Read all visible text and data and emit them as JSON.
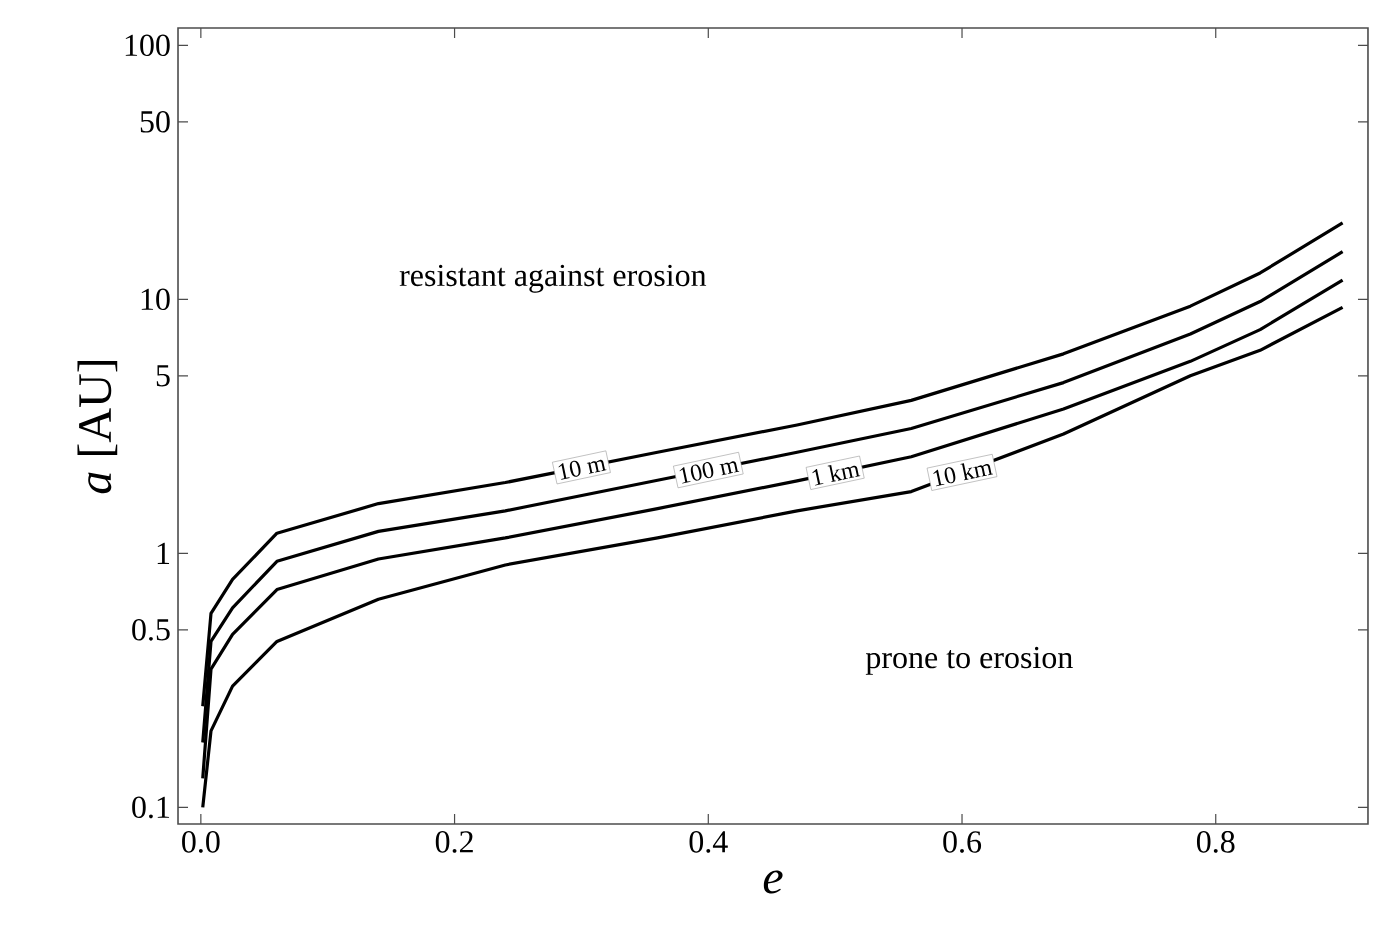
{
  "chart_data": {
    "type": "line",
    "xlabel": "e",
    "ylabel": "*a* [AU]",
    "log": "y",
    "xlim": [
      -0.018,
      0.92
    ],
    "ylim": [
      0.086,
      117
    ],
    "xticks": [
      {
        "value": 0,
        "label": "0.0"
      },
      0.2,
      0.4,
      0.6,
      0.8
    ],
    "yticks": [
      0.1,
      0.5,
      1,
      5,
      10,
      50,
      100
    ],
    "x": [
      0.0015,
      0.008,
      0.025,
      0.06,
      0.14,
      0.24,
      0.36,
      0.47,
      0.56,
      0.68,
      0.78,
      0.835,
      0.9
    ],
    "series": [
      {
        "name": "10 m",
        "color": "#000000",
        "values": [
          0.25,
          0.58,
          0.79,
          1.2,
          1.57,
          1.9,
          2.5,
          3.2,
          4.0,
          6.1,
          9.4,
          12.7,
          20
        ]
      },
      {
        "name": "100 m",
        "color": "#000000",
        "values": [
          0.18,
          0.45,
          0.61,
          0.93,
          1.22,
          1.47,
          1.94,
          2.5,
          3.1,
          4.7,
          7.3,
          9.8,
          15.4
        ]
      },
      {
        "name": "1 km",
        "color": "#000000",
        "values": [
          0.13,
          0.35,
          0.48,
          0.72,
          0.95,
          1.15,
          1.5,
          1.93,
          2.4,
          3.7,
          5.7,
          7.6,
          11.9
        ]
      },
      {
        "name": "10 km",
        "color": "#000000",
        "values": [
          0.1,
          0.2,
          0.3,
          0.45,
          0.66,
          0.9,
          1.15,
          1.47,
          1.75,
          2.95,
          5.0,
          6.3,
          9.3
        ]
      }
    ],
    "annotations": [
      "resistant against erosion",
      "prone to erosion"
    ]
  }
}
